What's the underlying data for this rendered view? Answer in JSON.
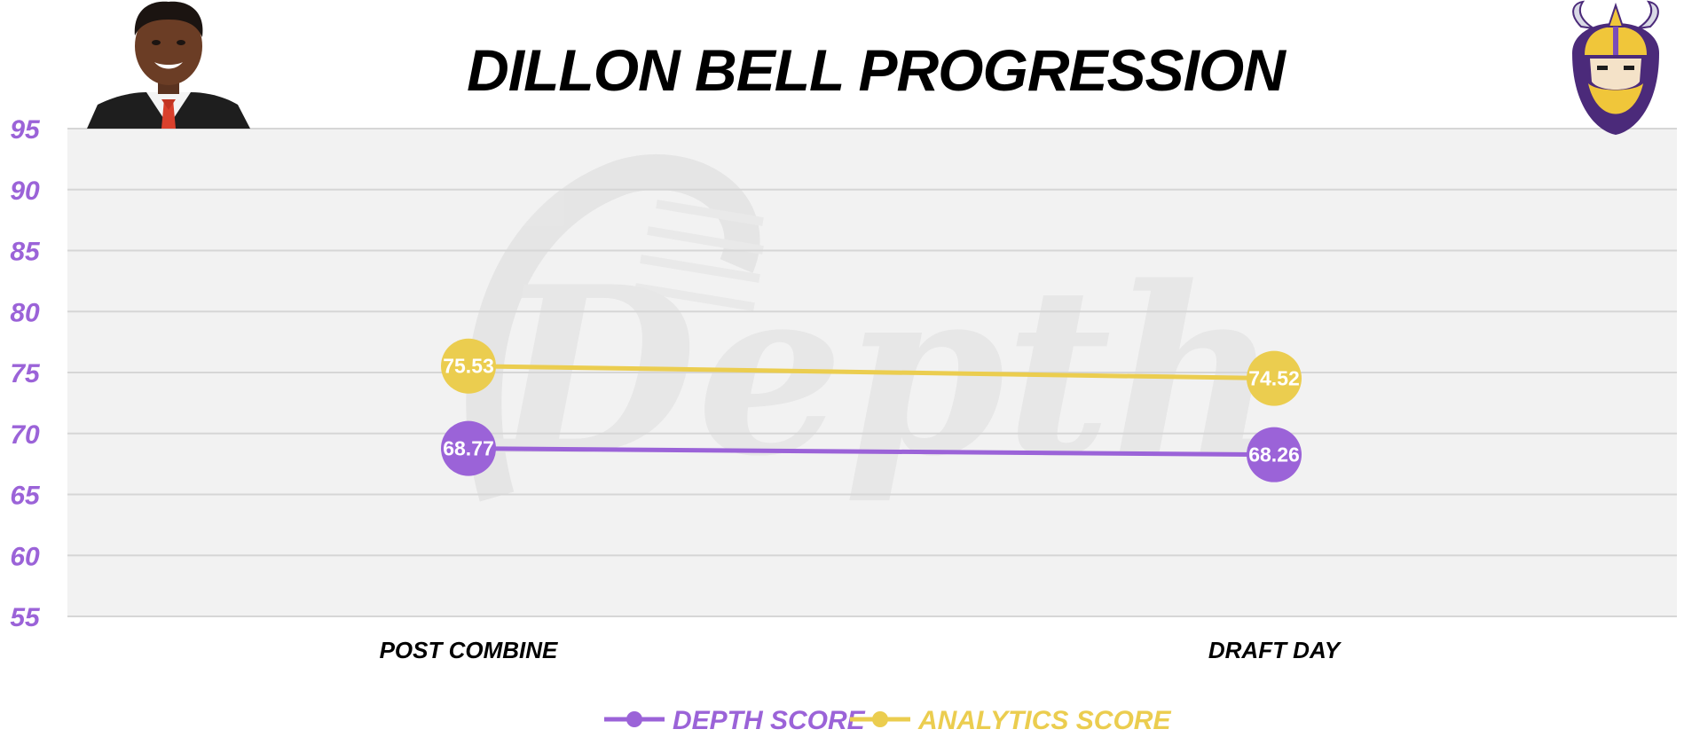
{
  "colors": {
    "depth": "#9b63d8",
    "analytics": "#ebcd4f",
    "axis_text": "#9b63d8",
    "plot_bg": "#f2f2f2",
    "grid": "#d6d6d6"
  },
  "icons": {
    "player_photo": "player-headshot",
    "team_logo": "viking-logo",
    "watermark": "Depth"
  },
  "chart_data": {
    "type": "line",
    "title": "DILLON BELL PROGRESSION",
    "xlabel": "",
    "ylabel": "",
    "categories": [
      "POST COMBINE",
      "DRAFT DAY"
    ],
    "ylim": [
      55,
      95
    ],
    "yticks": [
      95,
      90,
      85,
      80,
      75,
      70,
      65,
      60,
      55
    ],
    "grid": true,
    "legend_position": "bottom-center",
    "series": [
      {
        "name": "DEPTH SCORE",
        "color": "#9b63d8",
        "values": [
          68.77,
          68.26
        ]
      },
      {
        "name": "ANALYTICS SCORE",
        "color": "#ebcd4f",
        "values": [
          75.53,
          74.52
        ]
      }
    ]
  }
}
